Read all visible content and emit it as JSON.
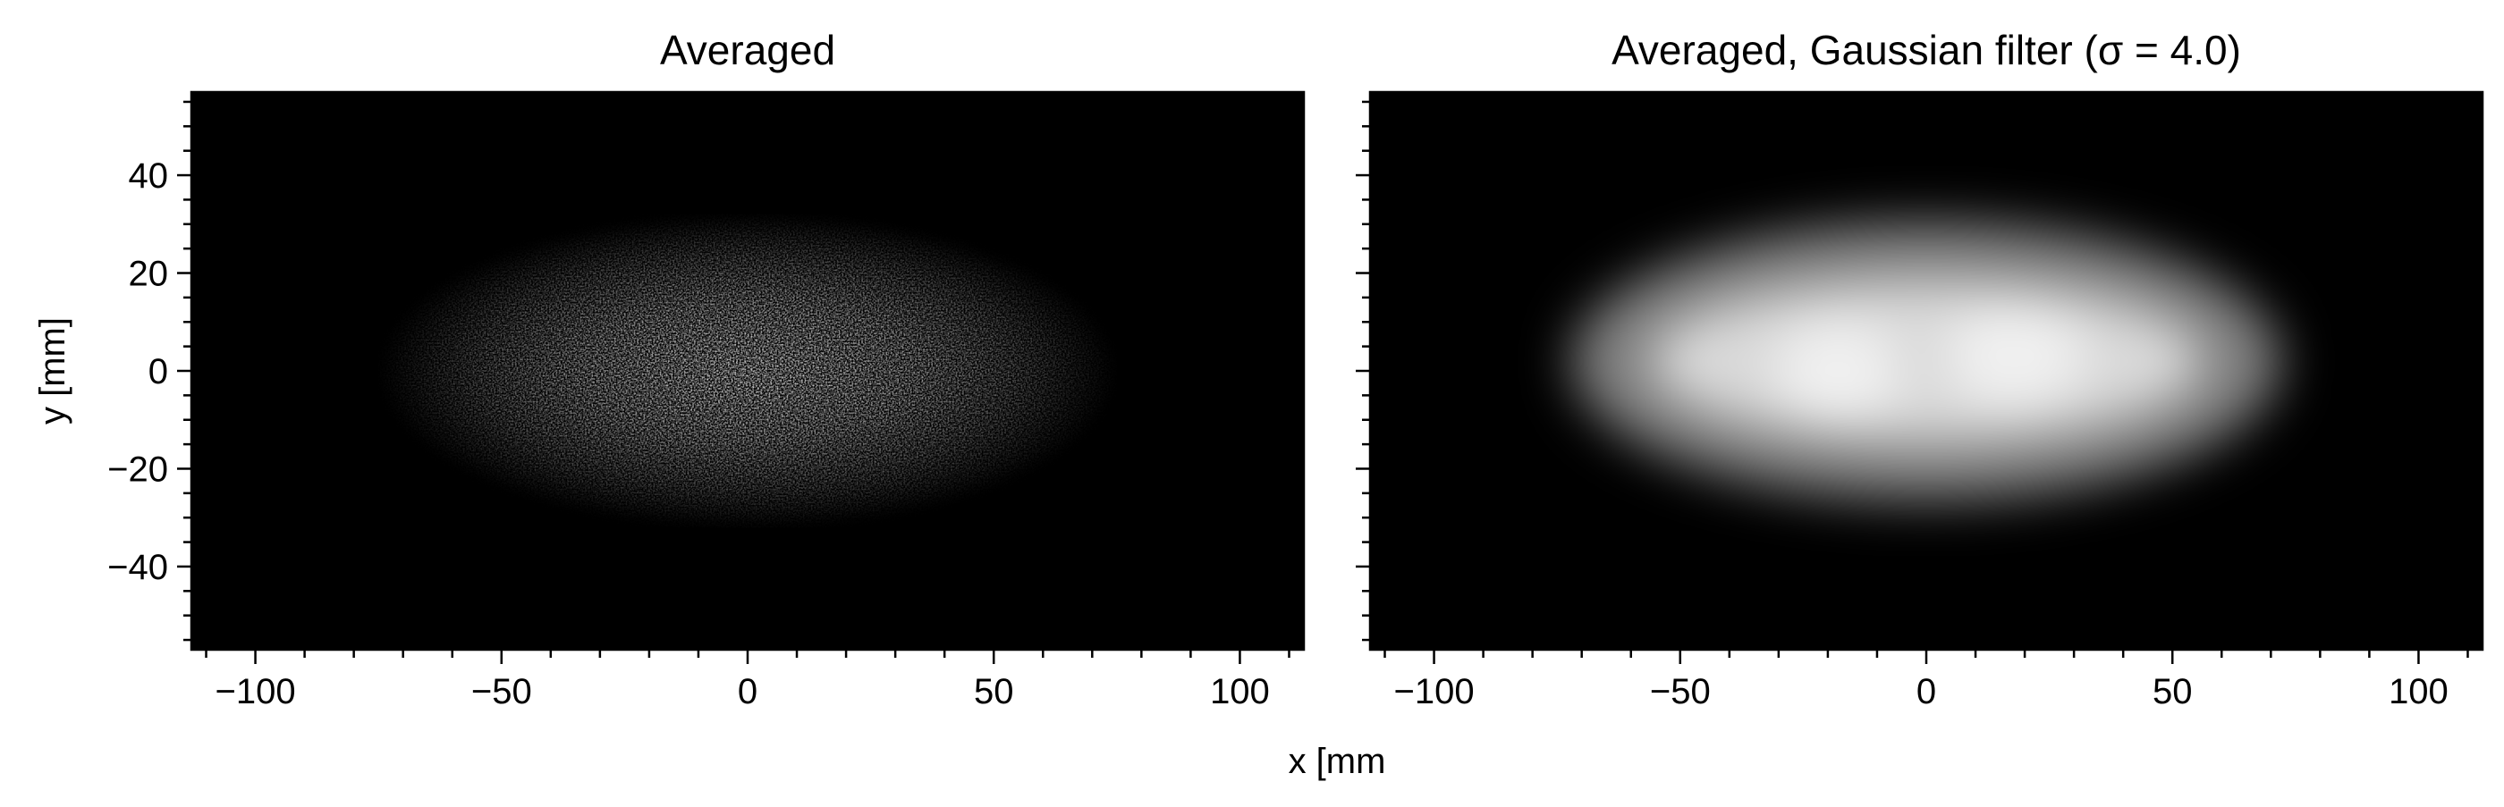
{
  "colors": {
    "background": "#000000",
    "blob": "#ffffff",
    "axis": "#000000"
  },
  "figure": {
    "xlabel": "x [mm",
    "ylabel": "y [mm]"
  },
  "chart_data": [
    {
      "type": "heatmap",
      "title": "Averaged",
      "xlim": [
        -113,
        113
      ],
      "ylim": [
        -57,
        57
      ],
      "xticks": [
        -100,
        -50,
        0,
        50,
        100
      ],
      "xtick_labels": [
        "−100",
        "−50",
        "0",
        "50",
        "100"
      ],
      "yticks": [
        -40,
        -20,
        0,
        20,
        40
      ],
      "ytick_labels": [
        "−40",
        "−20",
        "0",
        "20",
        "40"
      ],
      "x_minor_step": 10,
      "y_minor_step": 5,
      "colormap": "gray",
      "style": "noisy",
      "blob": {
        "cx": 0,
        "cy": 0,
        "half_width_x": 75,
        "half_height_y": 32
      }
    },
    {
      "type": "heatmap",
      "title": "Averaged, Gaussian filter (σ = 4.0)",
      "xlim": [
        -113,
        113
      ],
      "ylim": [
        -57,
        57
      ],
      "xticks": [
        -100,
        -50,
        0,
        50,
        100
      ],
      "xtick_labels": [
        "−100",
        "−50",
        "0",
        "50",
        "100"
      ],
      "yticks": [
        -40,
        -20,
        0,
        20,
        40
      ],
      "ytick_labels": [],
      "x_minor_step": 10,
      "y_minor_step": 5,
      "colormap": "gray",
      "style": "smooth",
      "blob": {
        "cx": 0,
        "cy": 2,
        "half_width_x": 72,
        "half_height_y": 30
      }
    }
  ]
}
